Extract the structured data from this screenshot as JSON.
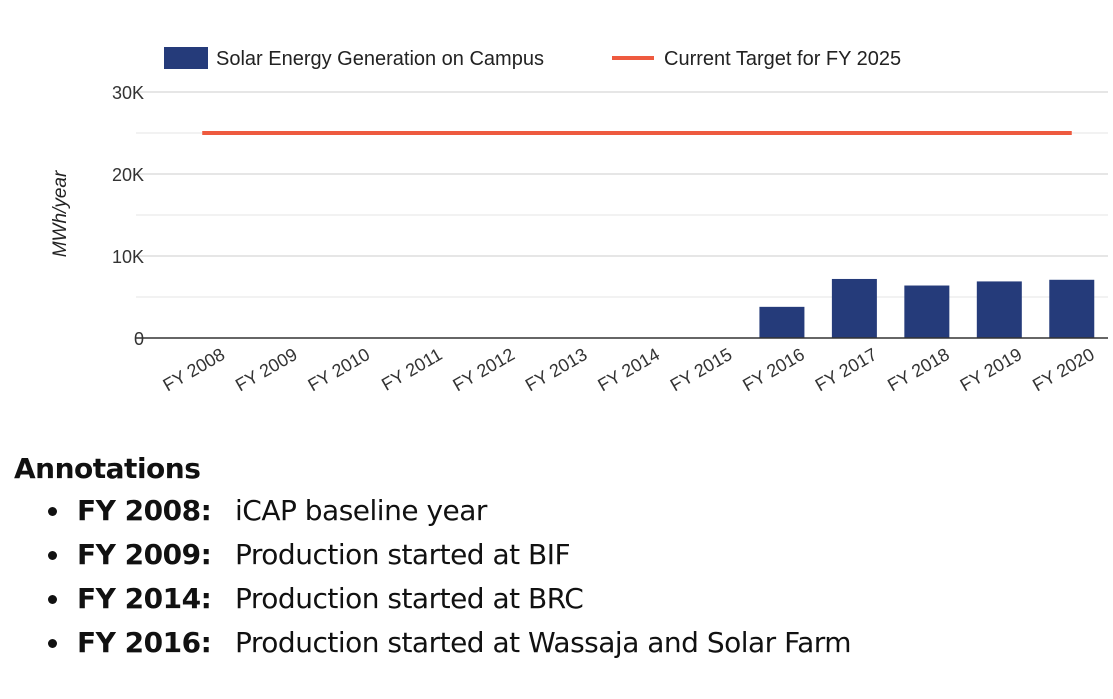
{
  "chart_data": {
    "type": "bar",
    "categories": [
      "FY 2008",
      "FY 2009",
      "FY 2010",
      "FY 2011",
      "FY 2012",
      "FY 2013",
      "FY 2014",
      "FY 2015",
      "FY 2016",
      "FY 2017",
      "FY 2018",
      "FY 2019",
      "FY 2020"
    ],
    "series": [
      {
        "name": "Solar Energy Generation on Campus",
        "type": "bar",
        "color": "#253b7a",
        "values": [
          0,
          0,
          0,
          0,
          0,
          0,
          0,
          0,
          3800,
          7200,
          6400,
          6900,
          7100
        ]
      },
      {
        "name": "Current Target for FY 2025",
        "type": "line",
        "color": "#ee5a3f",
        "values": [
          25000,
          25000,
          25000,
          25000,
          25000,
          25000,
          25000,
          25000,
          25000,
          25000,
          25000,
          25000,
          25000
        ]
      }
    ],
    "ylabel": "MWh/year",
    "xlabel": "",
    "ylim": [
      0,
      30000
    ],
    "yticks": [
      0,
      10000,
      20000,
      30000
    ],
    "ytick_labels": [
      "0",
      "10K",
      "20K",
      "30K"
    ],
    "grid": true,
    "legend": "top"
  },
  "annotations": {
    "title": "Annotations",
    "items": [
      {
        "year": "FY 2008:",
        "text": "iCAP baseline year"
      },
      {
        "year": "FY 2009:",
        "text": "Production started at BIF"
      },
      {
        "year": "FY 2014:",
        "text": "Production started at BRC"
      },
      {
        "year": "FY 2016:",
        "text": "Production started at Wassaja and Solar Farm"
      }
    ]
  }
}
